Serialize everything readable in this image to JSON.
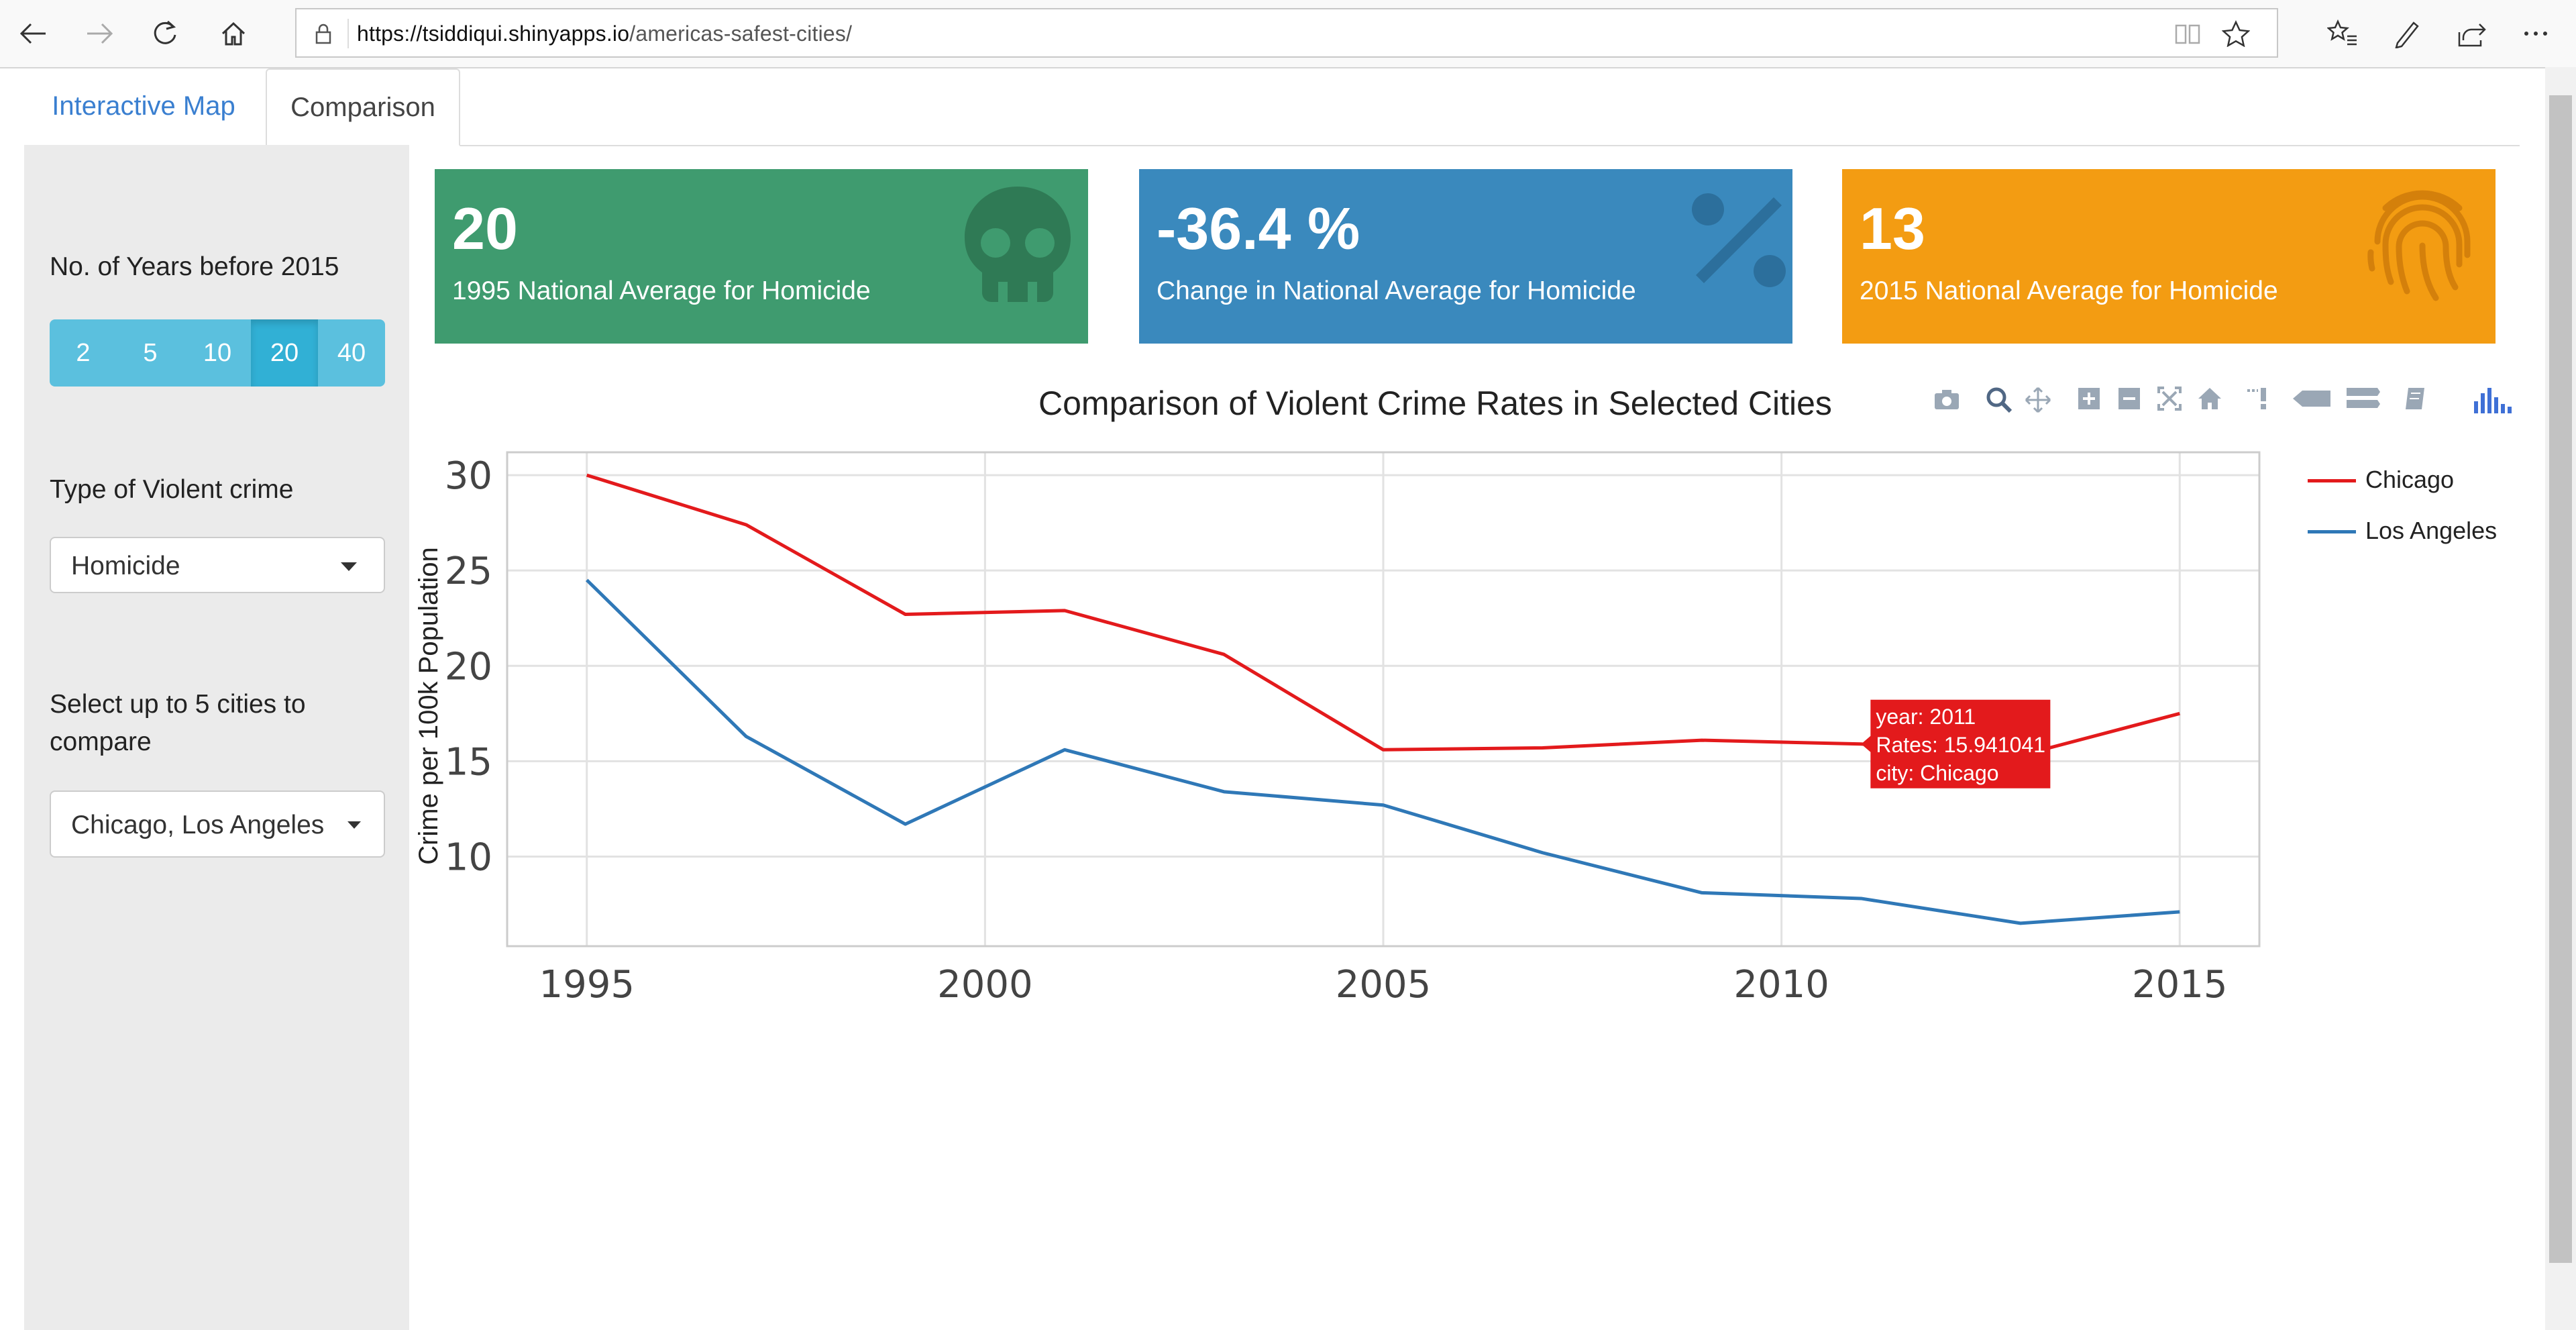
{
  "browser": {
    "url_host": "https://tsiddiqui.shinyapps.io",
    "url_path": "/americas-safest-cities/"
  },
  "tabs": [
    {
      "label": "Interactive Map",
      "active": false
    },
    {
      "label": "Comparison",
      "active": true
    }
  ],
  "sidebar": {
    "years_label": "No. of Years before 2015",
    "years_options": [
      "2",
      "5",
      "10",
      "20",
      "40"
    ],
    "years_selected": "20",
    "crime_label": "Type of Violent crime",
    "crime_value": "Homicide",
    "cities_label_line1": "Select up to 5 cities to",
    "cities_label_line2": "compare",
    "cities_value": "Chicago, Los Angeles"
  },
  "value_boxes": [
    {
      "value": "20",
      "subtitle": "1995 National Average for Homicide",
      "color": "#3f9b6f",
      "icon": "skull-icon"
    },
    {
      "value": "-36.4 %",
      "subtitle": "Change in National Average for Homicide",
      "color": "#3a89bd",
      "icon": "percent-icon"
    },
    {
      "value": "13",
      "subtitle": "2015 National Average for Homicide",
      "color": "#f39c12",
      "icon": "fingerprint-icon"
    }
  ],
  "tooltip": {
    "line1": "year: 2011",
    "line2": "Rates: 15.941041",
    "line3": "city: Chicago",
    "color": "#e31a1c"
  },
  "chart_data": {
    "type": "line",
    "title": "Comparison of Violent Crime Rates in Selected Cities",
    "xlabel": "",
    "ylabel": "Crime per 100k Population",
    "xlim": [
      1994,
      2016
    ],
    "ylim": [
      5.3,
      31.2
    ],
    "xticks": [
      1995,
      2000,
      2005,
      2010,
      2015
    ],
    "yticks": [
      10,
      15,
      20,
      25,
      30
    ],
    "grid": true,
    "legend": "right",
    "series": [
      {
        "name": "Chicago",
        "color": "#e31a1c",
        "x": [
          1995,
          1997,
          1999,
          2001,
          2003,
          2005,
          2007,
          2009,
          2011,
          2013,
          2015
        ],
        "y": [
          30.0,
          27.4,
          22.7,
          22.9,
          20.6,
          15.6,
          15.7,
          16.1,
          15.9,
          15.3,
          17.5
        ]
      },
      {
        "name": "Los Angeles",
        "color": "#2f78b7",
        "x": [
          1995,
          1997,
          1999,
          2001,
          2003,
          2005,
          2007,
          2009,
          2011,
          2013,
          2015
        ],
        "y": [
          24.5,
          16.3,
          11.7,
          15.6,
          13.4,
          12.7,
          10.2,
          8.1,
          7.8,
          6.5,
          7.1
        ]
      }
    ]
  }
}
